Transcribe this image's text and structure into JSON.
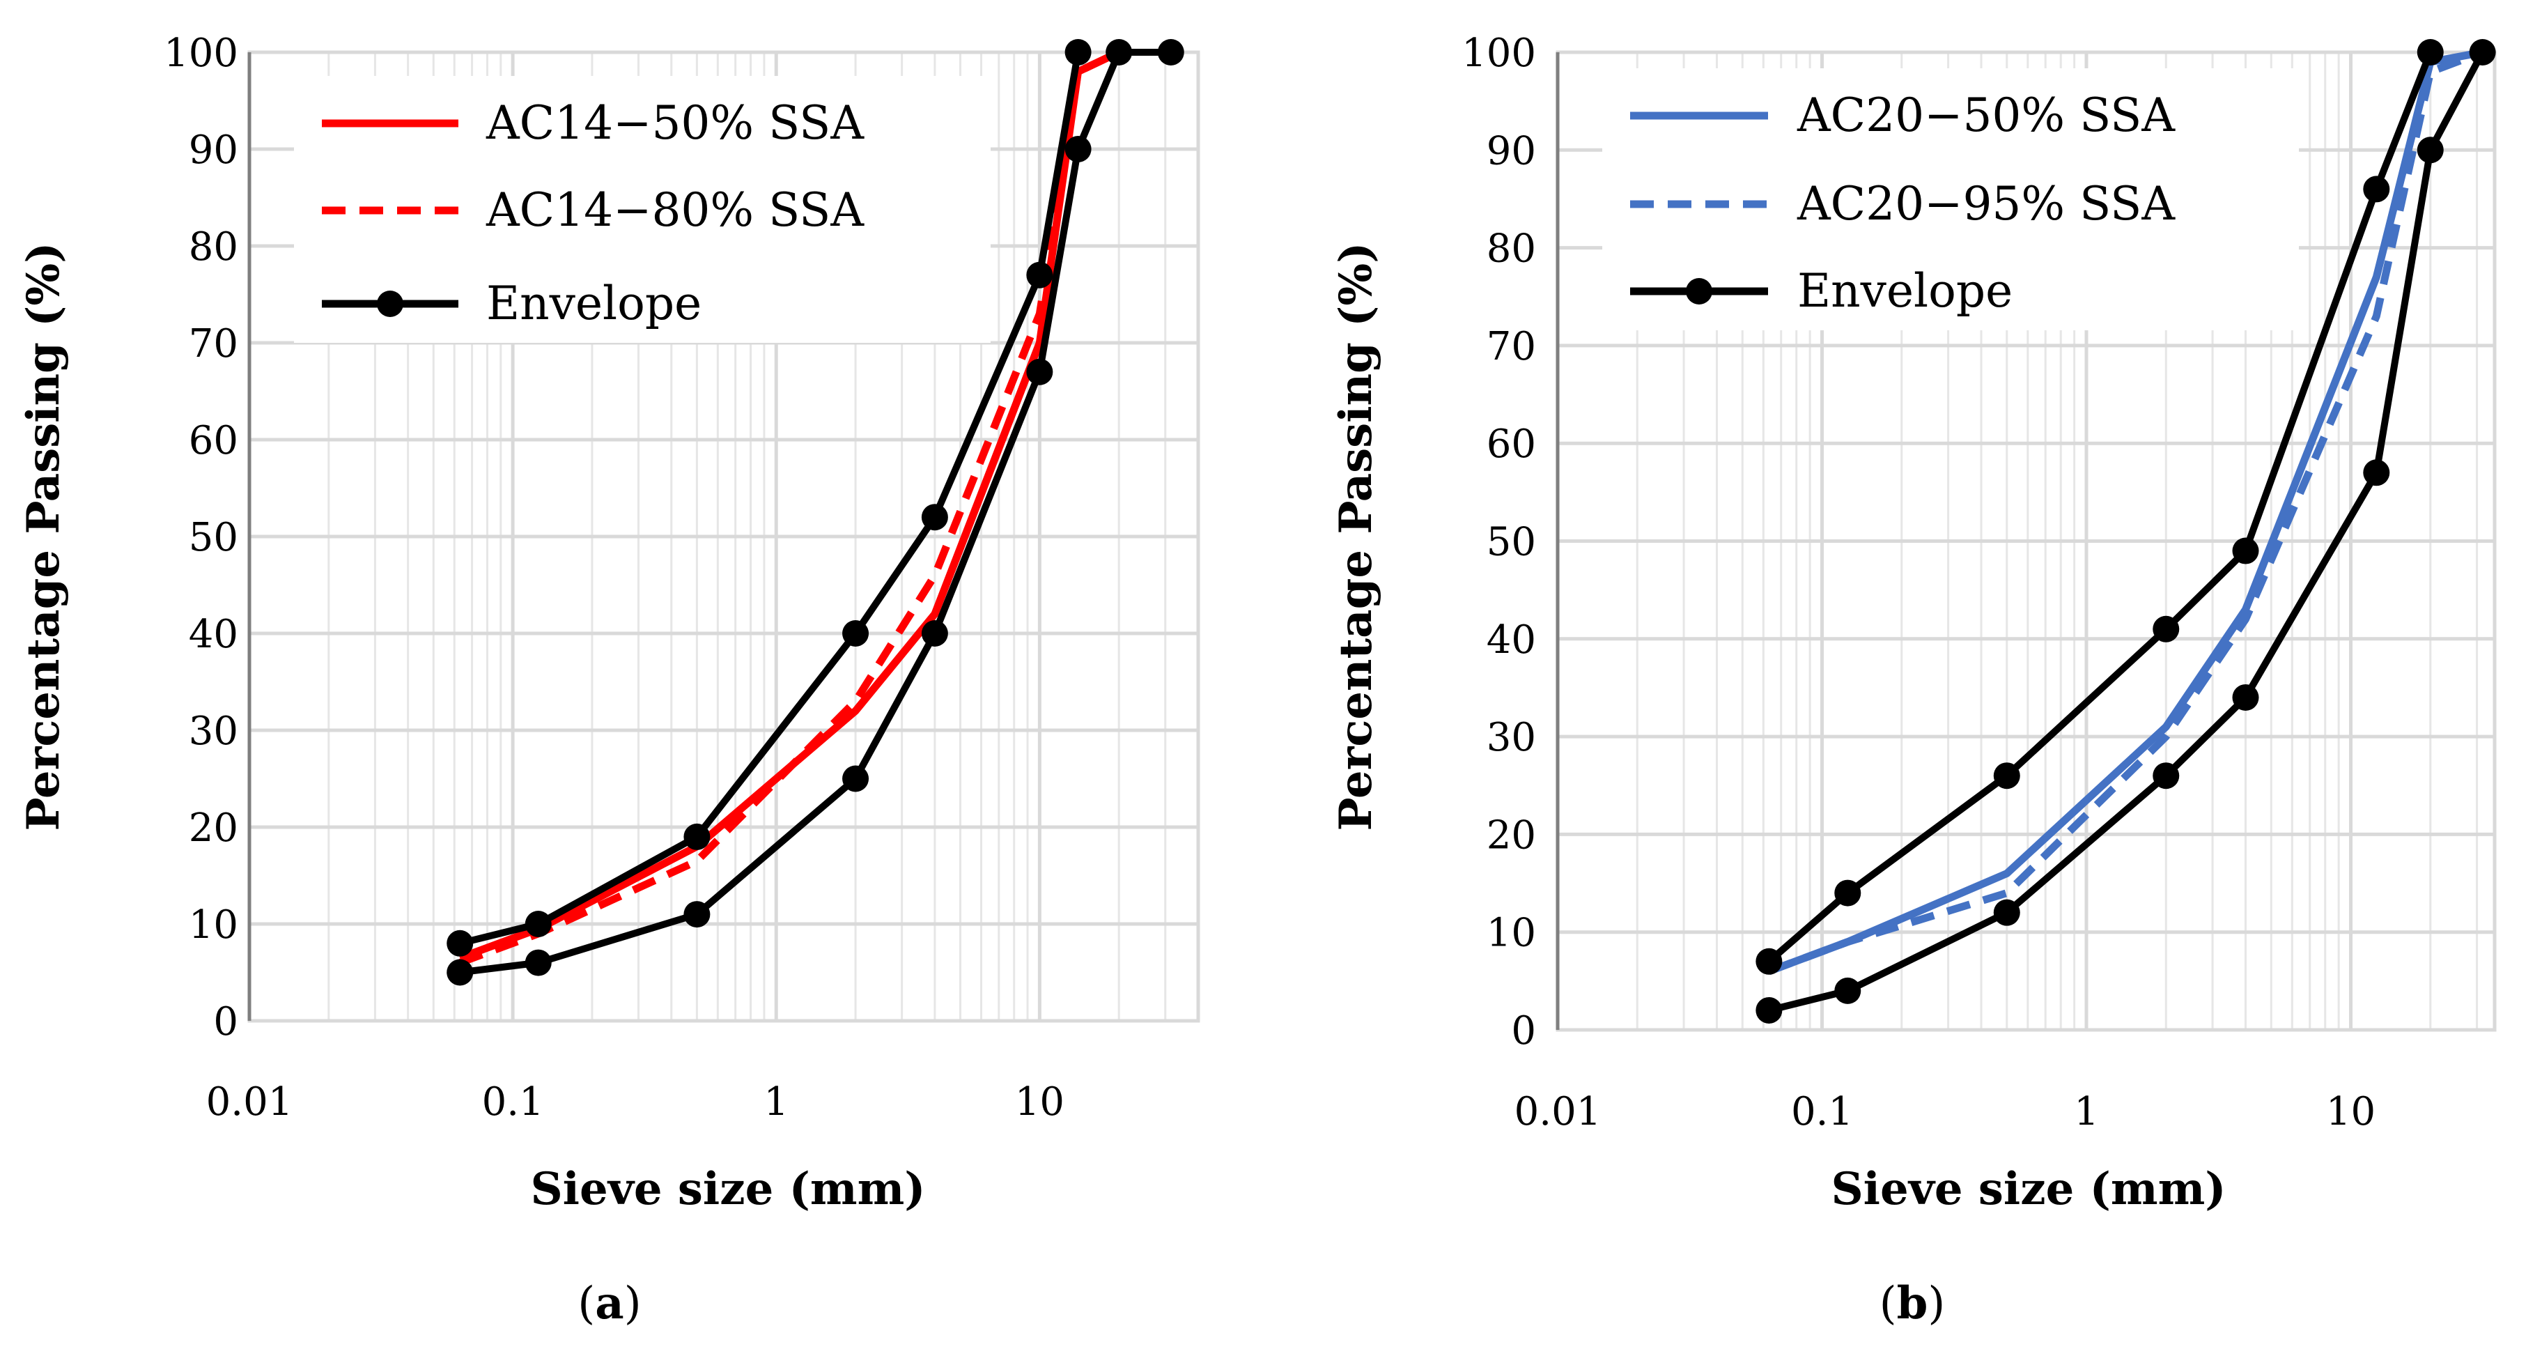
{
  "colors": {
    "red": "#ff0000",
    "blue": "#4472c4",
    "black": "#000000",
    "grid": "#d9d9d9"
  },
  "chart_data": [
    {
      "id": "a",
      "type": "line",
      "panel_label": [
        "(",
        "a",
        ")"
      ],
      "xlabel": "Sieve size (mm)",
      "ylabel": "Percentage Passing (%)",
      "xscale": "log",
      "xlim": [
        0.01,
        40
      ],
      "ylim": [
        0,
        100
      ],
      "xticks": [
        0.01,
        0.1,
        1,
        10
      ],
      "xtick_labels": [
        "0.01",
        "0.1",
        "1",
        "10"
      ],
      "yticks": [
        0,
        10,
        20,
        30,
        40,
        50,
        60,
        70,
        80,
        90,
        100
      ],
      "ytick_labels": [
        "0",
        "10",
        "20",
        "30",
        "40",
        "50",
        "60",
        "70",
        "80",
        "90",
        "100"
      ],
      "grid": true,
      "legend_position": "top-left",
      "series": [
        {
          "name": "AC14−50% SSA",
          "color": "#ff0000",
          "dash": "solid",
          "x": [
            0.063,
            0.125,
            0.5,
            2,
            4,
            10,
            14,
            20
          ],
          "y": [
            6.5,
            9.5,
            18,
            32,
            42,
            70,
            98,
            100
          ]
        },
        {
          "name": "AC14−80% SSA",
          "color": "#ff0000",
          "dash": "dashed",
          "x": [
            0.063,
            0.125,
            0.5,
            2,
            4,
            10,
            14,
            20
          ],
          "y": [
            6,
            9,
            16.5,
            33,
            46,
            73,
            98,
            100
          ]
        },
        {
          "name": "Envelope",
          "color": "#000000",
          "dash": "solid",
          "markers": true,
          "x": [
            0.063,
            0.125,
            0.5,
            2,
            4,
            10,
            14
          ],
          "y": [
            8,
            10,
            19,
            40,
            52,
            77,
            100
          ]
        },
        {
          "name": "Envelope",
          "color": "#000000",
          "dash": "solid",
          "markers": true,
          "legend": false,
          "x": [
            0.063,
            0.125,
            0.5,
            2,
            4,
            10,
            14,
            20,
            31.5
          ],
          "y": [
            5,
            6,
            11,
            25,
            40,
            67,
            90,
            100,
            100
          ]
        }
      ]
    },
    {
      "id": "b",
      "type": "line",
      "panel_label": [
        "(",
        "b",
        ")"
      ],
      "xlabel": "Sieve size (mm)",
      "ylabel": "Percentage Passing (%)",
      "xscale": "log",
      "xlim": [
        0.01,
        35
      ],
      "ylim": [
        0,
        100
      ],
      "xticks": [
        0.01,
        0.1,
        1,
        10
      ],
      "xtick_labels": [
        "0.01",
        "0.1",
        "1",
        "10"
      ],
      "yticks": [
        0,
        10,
        20,
        30,
        40,
        50,
        60,
        70,
        80,
        90,
        100
      ],
      "ytick_labels": [
        "0",
        "10",
        "20",
        "30",
        "40",
        "50",
        "60",
        "70",
        "80",
        "90",
        "100"
      ],
      "grid": true,
      "legend_position": "top-left",
      "series": [
        {
          "name": "AC20−50% SSA",
          "color": "#4472c4",
          "dash": "solid",
          "x": [
            0.063,
            0.125,
            0.5,
            2,
            4,
            12.5,
            20,
            31.5
          ],
          "y": [
            6,
            9,
            16,
            31,
            43,
            77,
            99,
            100
          ]
        },
        {
          "name": "AC20−95% SSA",
          "color": "#4472c4",
          "dash": "dashed",
          "x": [
            0.063,
            0.125,
            0.5,
            2,
            4,
            12.5,
            20,
            31.5
          ],
          "y": [
            6,
            9,
            14,
            30,
            42,
            73,
            98,
            100
          ]
        },
        {
          "name": "Envelope",
          "color": "#000000",
          "dash": "solid",
          "markers": true,
          "x": [
            0.063,
            0.125,
            0.5,
            2,
            4,
            12.5,
            20
          ],
          "y": [
            7,
            14,
            26,
            41,
            49,
            86,
            100
          ]
        },
        {
          "name": "Envelope",
          "color": "#000000",
          "dash": "solid",
          "markers": true,
          "legend": false,
          "x": [
            0.063,
            0.125,
            0.5,
            2,
            4,
            12.5,
            20,
            31.5
          ],
          "y": [
            2,
            4,
            12,
            26,
            34,
            57,
            90,
            100
          ]
        }
      ]
    }
  ]
}
